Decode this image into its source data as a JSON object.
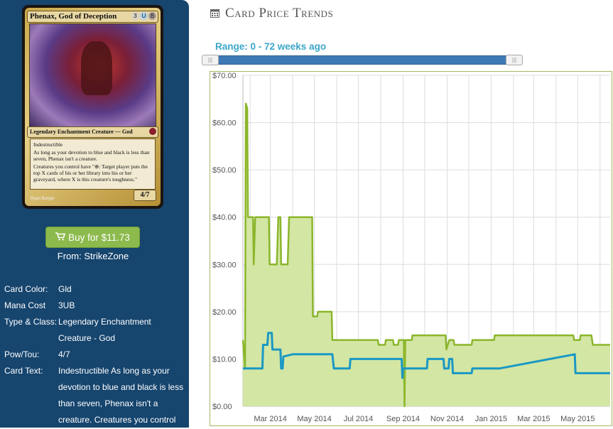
{
  "card_image": {
    "name": "Phenax, God of Deception",
    "mana": [
      "3",
      "U",
      "B"
    ],
    "type_line": "Legendary Enchantment Creature — God",
    "rules_lines": [
      "Indestructible",
      "As long as your devotion to blue and black is less than seven, Phenax isn't a creature.",
      "Creatures you control have \"⊕: Target player puts the top X cards of his or her library into his or her graveyard, where X is this creature's toughness.\""
    ],
    "pt": "4/7",
    "artist": "Ryan Barger"
  },
  "buy": {
    "label": "Buy for $11.73",
    "from": "From: StrikeZone"
  },
  "info": {
    "color_label": "Card Color:",
    "color_value": "Gld",
    "cost_label": "Mana Cost",
    "cost_value": "3UB",
    "type_label": "Type & Class:",
    "type_value": "Legendary Enchantment Creature - God",
    "pow_label": "Pow/Tou:",
    "pow_value": "4/7",
    "text_label": "Card Text:",
    "text_value": "Indestructible As long as your devotion to blue and black is less than seven, Phenax isn't a creature. Creatures you control"
  },
  "header": {
    "title": "Card Price Trends",
    "icon": "calendar-icon"
  },
  "range": {
    "label": "Range: 0 - 72 weeks ago"
  },
  "colors": {
    "accent": "#3aa6c8",
    "sidebar": "#16456e",
    "green": "#8cba4d",
    "area": "#d3e6a4",
    "blue": "#1a98c4"
  },
  "chart_data": {
    "type": "area",
    "x_tick_labels": [
      "Mar 2014",
      "May 2014",
      "Jul 2014",
      "Sep 2014",
      "Nov 2014",
      "Jan 2015",
      "Mar 2015",
      "May 2015"
    ],
    "y_tick_labels": [
      "$0.00",
      "$10.00",
      "$20.00",
      "$30.00",
      "$40.00",
      "$50.00",
      "$60.00",
      "$70.00"
    ],
    "ylim": [
      0,
      70
    ],
    "grid": true,
    "series": [
      {
        "color": "#8bb62b",
        "points": [
          [
            "2014-01-22",
            14
          ],
          [
            "2014-01-25",
            8
          ],
          [
            "2014-01-26",
            64
          ],
          [
            "2014-01-28",
            63
          ],
          [
            "2014-01-29",
            40
          ],
          [
            "2014-02-05",
            40
          ],
          [
            "2014-02-06",
            30
          ],
          [
            "2014-02-08",
            40
          ],
          [
            "2014-02-27",
            40
          ],
          [
            "2014-02-28",
            30
          ],
          [
            "2014-03-10",
            30
          ],
          [
            "2014-03-12",
            40
          ],
          [
            "2014-03-15",
            40
          ],
          [
            "2014-03-16",
            30
          ],
          [
            "2014-03-25",
            30
          ],
          [
            "2014-03-27",
            40
          ],
          [
            "2014-04-28",
            40
          ],
          [
            "2014-04-29",
            19
          ],
          [
            "2014-05-05",
            19
          ],
          [
            "2014-05-06",
            20
          ],
          [
            "2014-05-25",
            20
          ],
          [
            "2014-05-26",
            14
          ],
          [
            "2014-07-28",
            14
          ],
          [
            "2014-07-29",
            13
          ],
          [
            "2014-08-07",
            13
          ],
          [
            "2014-08-08",
            14
          ],
          [
            "2014-08-18",
            14
          ],
          [
            "2014-08-19",
            13
          ],
          [
            "2014-08-25",
            13
          ],
          [
            "2014-08-26",
            14
          ],
          [
            "2014-09-02",
            14
          ],
          [
            "2014-09-03",
            0
          ],
          [
            "2014-09-04",
            14
          ],
          [
            "2014-09-13",
            14
          ],
          [
            "2014-09-14",
            15
          ],
          [
            "2014-10-30",
            15
          ],
          [
            "2014-10-31",
            12
          ],
          [
            "2014-11-04",
            14
          ],
          [
            "2014-11-10",
            14
          ],
          [
            "2014-11-11",
            13
          ],
          [
            "2014-12-05",
            13
          ],
          [
            "2014-12-06",
            14
          ],
          [
            "2015-01-05",
            14
          ],
          [
            "2015-01-06",
            15
          ],
          [
            "2015-04-25",
            15
          ],
          [
            "2015-04-26",
            14
          ],
          [
            "2015-05-04",
            14
          ],
          [
            "2015-05-05",
            15
          ],
          [
            "2015-05-20",
            15
          ],
          [
            "2015-05-22",
            13
          ],
          [
            "2015-06-15",
            13
          ]
        ]
      },
      {
        "color": "#1a98c4",
        "points": [
          [
            "2014-01-22",
            8
          ],
          [
            "2014-02-18",
            8
          ],
          [
            "2014-02-19",
            13
          ],
          [
            "2014-02-25",
            13
          ],
          [
            "2014-02-26",
            15.5
          ],
          [
            "2014-03-03",
            15.5
          ],
          [
            "2014-03-04",
            12
          ],
          [
            "2014-03-15",
            12
          ],
          [
            "2014-03-16",
            8
          ],
          [
            "2014-03-18",
            8
          ],
          [
            "2014-03-19",
            10.5
          ],
          [
            "2014-04-01",
            11
          ],
          [
            "2014-05-26",
            11
          ],
          [
            "2014-05-28",
            8
          ],
          [
            "2014-06-19",
            8
          ],
          [
            "2014-06-20",
            10
          ],
          [
            "2014-08-30",
            10
          ],
          [
            "2014-08-31",
            6
          ],
          [
            "2014-09-01",
            8
          ],
          [
            "2014-10-04",
            8
          ],
          [
            "2014-10-05",
            10
          ],
          [
            "2014-10-27",
            10
          ],
          [
            "2014-10-28",
            8
          ],
          [
            "2014-11-03",
            8
          ],
          [
            "2014-11-04",
            10
          ],
          [
            "2014-11-08",
            10
          ],
          [
            "2014-11-09",
            7
          ],
          [
            "2014-12-05",
            7
          ],
          [
            "2014-12-06",
            8
          ],
          [
            "2015-01-13",
            8
          ],
          [
            "2015-04-27",
            11
          ],
          [
            "2015-04-28",
            7
          ],
          [
            "2015-06-15",
            7
          ]
        ]
      }
    ]
  }
}
